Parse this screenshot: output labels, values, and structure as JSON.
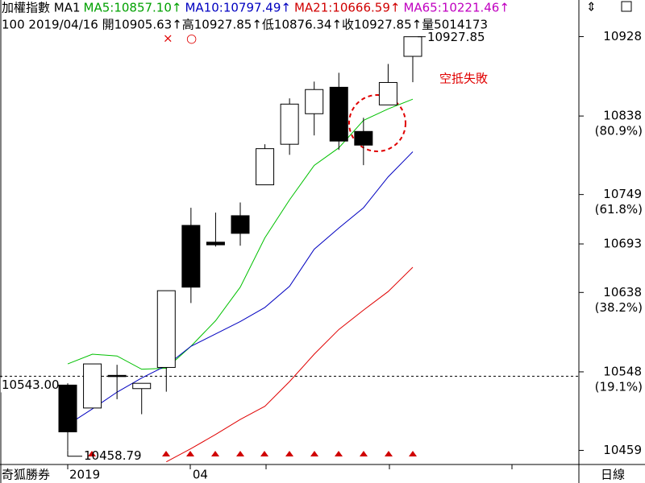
{
  "chart_data": {
    "type": "candlestick",
    "header": {
      "line1": [
        {
          "text": "加權指數 MA1",
          "color": "#000000"
        },
        {
          "text": "MA5:10857.10↑",
          "color": "#00a000"
        },
        {
          "text": "MA10:10797.49↑",
          "color": "#0000c0"
        },
        {
          "text": "MA21:10666.59↑",
          "color": "#d00000"
        },
        {
          "text": "MA65:10221.46↑",
          "color": "#c000c0"
        }
      ],
      "line2": "100 2019/04/16 開10905.63↑高10927.85↑低10876.34↑收10927.85↑量5014173"
    },
    "categories": [
      "2019",
      null,
      null,
      null,
      null,
      "04",
      null,
      null,
      null,
      null,
      null,
      null,
      null,
      null,
      null
    ],
    "open": [
      10533,
      10507,
      10544,
      10529,
      10553,
      10714,
      10695,
      10725,
      10760,
      10806,
      10840.6,
      10870.6,
      10820.5,
      10850.6,
      10905.63
    ],
    "high": [
      10535,
      10557,
      10556,
      10535,
      10640,
      10734,
      10728.5,
      10740,
      10806,
      10858,
      10877,
      10887,
      10836,
      10897,
      10927.85
    ],
    "low": [
      10458.79,
      10507,
      10517,
      10500,
      10525.5,
      10626,
      10690,
      10691,
      10760,
      10794,
      10816,
      10799.6,
      10782.3,
      10850.6,
      10876.34
    ],
    "close": [
      10480,
      10557,
      10543,
      10535,
      10640,
      10644,
      10692,
      10705,
      10801,
      10851.5,
      10868,
      10809.6,
      10805,
      10876,
      10927.85
    ],
    "up_color": "#ffffff",
    "down_color": "#000000",
    "series": [
      {
        "name": "MA5",
        "color": "#00c000",
        "values": [
          10557,
          10568,
          10566,
          10551,
          10552,
          10577,
          10606,
          10644,
          10700,
          10743,
          10782,
          10802,
          10833,
          10846,
          10857.1
        ]
      },
      {
        "name": "MA10",
        "color": "#0000c0",
        "values": [
          10488,
          10506,
          10525,
          10541,
          10555,
          10577,
          10591,
          10605,
          10621,
          10645,
          10687,
          10711,
          10734,
          10769,
          10797.49
        ]
      },
      {
        "name": "MA21",
        "color": "#e00000",
        "values": [
          null,
          null,
          null,
          null,
          10446,
          10461,
          10477,
          10494,
          10509,
          10537,
          10568,
          10596,
          10618,
          10639,
          10666.59
        ]
      }
    ],
    "ylim": [
      10443,
      10933
    ],
    "yticks": [
      10928,
      10838,
      10749,
      10693,
      10638,
      10548,
      10459
    ],
    "fib_labels": [
      {
        "value": 10838,
        "label": "(80.9%)"
      },
      {
        "value": 10749,
        "label": "(61.8%)"
      },
      {
        "value": 10638,
        "label": "(38.2%)"
      },
      {
        "value": 10548,
        "label": "(19.1%)"
      }
    ],
    "high_label": {
      "value": 10927.85,
      "label": "10927.85"
    },
    "low_label": {
      "value": 10458.79,
      "label": "10458.79"
    },
    "ref_line": {
      "value": 10543,
      "label": "10543.00"
    },
    "annotation": "空抵失敗",
    "marker_x": "×",
    "marker_o": "○",
    "brand": "奇狐勝券",
    "period": "日線"
  }
}
